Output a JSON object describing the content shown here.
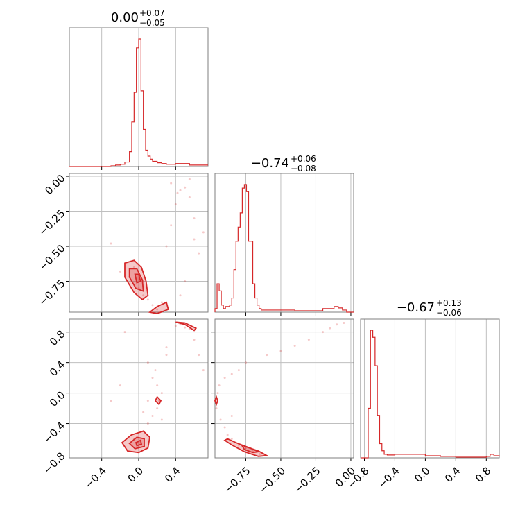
{
  "chart_data": {
    "type": "corner",
    "color": "#d62728",
    "titles": [
      {
        "value": "0.00",
        "plus": "+0.07",
        "minus": "−0.05"
      },
      {
        "value": "−0.74",
        "plus": "+0.06",
        "minus": "−0.08"
      },
      {
        "value": "−0.67",
        "plus": "+0.13",
        "minus": "−0.06"
      }
    ],
    "param_ranges": [
      [
        -0.75,
        0.75
      ],
      [
        -0.97,
        0.02
      ],
      [
        -0.85,
        0.97
      ]
    ],
    "ticks": {
      "p0": [
        {
          "v": -0.4,
          "label": "−0.4"
        },
        {
          "v": 0.0,
          "label": "0.0"
        },
        {
          "v": 0.4,
          "label": "0.4"
        }
      ],
      "p1": [
        {
          "v": -0.75,
          "label": "−0.75"
        },
        {
          "v": -0.5,
          "label": "−0.50"
        },
        {
          "v": -0.25,
          "label": "−0.25"
        },
        {
          "v": 0.0,
          "label": "0.00"
        }
      ],
      "p2": [
        {
          "v": -0.8,
          "label": "−0.8"
        },
        {
          "v": -0.4,
          "label": "−0.4"
        },
        {
          "v": 0.0,
          "label": "0.0"
        },
        {
          "v": 0.4,
          "label": "0.4"
        },
        {
          "v": 0.8,
          "label": "0.8"
        }
      ]
    },
    "hist_p0": {
      "x": [
        -0.75,
        -0.3,
        -0.25,
        -0.2,
        -0.15,
        -0.1,
        -0.075,
        -0.05,
        -0.025,
        0.0,
        0.025,
        0.05,
        0.075,
        0.1,
        0.125,
        0.15,
        0.2,
        0.25,
        0.3,
        0.4,
        0.5,
        0.55,
        0.75
      ],
      "values": [
        0,
        1,
        2,
        3,
        6,
        20,
        60,
        100,
        160,
        172,
        102,
        50,
        22,
        14,
        10,
        7,
        5,
        4,
        3,
        4,
        4,
        2,
        2
      ]
    },
    "hist_p1": {
      "x": [
        -0.97,
        -0.955,
        -0.94,
        -0.925,
        -0.91,
        -0.895,
        -0.88,
        -0.865,
        -0.85,
        -0.835,
        -0.82,
        -0.805,
        -0.79,
        -0.775,
        -0.76,
        -0.745,
        -0.73,
        -0.715,
        -0.7,
        -0.685,
        -0.67,
        -0.655,
        -0.64,
        -0.62,
        -0.5,
        -0.4,
        -0.3,
        -0.2,
        -0.15,
        -0.12,
        -0.09,
        -0.06,
        -0.03,
        0.02
      ],
      "values": [
        5,
        40,
        30,
        10,
        5,
        8,
        8,
        10,
        20,
        60,
        100,
        120,
        140,
        175,
        180,
        170,
        100,
        100,
        40,
        20,
        10,
        5,
        3,
        3,
        3,
        2,
        2,
        5,
        5,
        8,
        6,
        3,
        0,
        0
      ]
    },
    "hist_p2": {
      "x": [
        -0.85,
        -0.8,
        -0.75,
        -0.72,
        -0.69,
        -0.66,
        -0.63,
        -0.6,
        -0.57,
        -0.54,
        -0.5,
        -0.45,
        -0.4,
        -0.3,
        -0.2,
        -0.1,
        0.0,
        0.1,
        0.2,
        0.3,
        0.4,
        0.5,
        0.6,
        0.7,
        0.8,
        0.85,
        0.9,
        0.97
      ],
      "values": [
        0,
        0,
        70,
        180,
        170,
        130,
        60,
        20,
        10,
        5,
        4,
        4,
        5,
        5,
        5,
        5,
        3,
        3,
        2,
        2,
        1,
        1,
        1,
        1,
        2,
        5,
        3,
        2
      ]
    },
    "scatter_p0_p1": {
      "x": [
        -0.05,
        0.0,
        0.05,
        0.0,
        0.05,
        0.1,
        -0.1,
        -0.2,
        0.15,
        0.2,
        0.25,
        0.3,
        0.35,
        0.4,
        0.45,
        0.5,
        0.55,
        0.6,
        0.65,
        0.5,
        0.45,
        0.35,
        0.42,
        0.6,
        0.55,
        0.7,
        -0.3
      ],
      "y": [
        -0.65,
        -0.7,
        -0.75,
        -0.8,
        -0.85,
        -0.88,
        -0.72,
        -0.68,
        -0.92,
        -0.95,
        -0.9,
        -0.5,
        -0.35,
        -0.2,
        -0.1,
        -0.08,
        -0.15,
        -0.3,
        -0.55,
        -0.75,
        -0.85,
        -0.05,
        -0.12,
        -0.45,
        -0.02,
        -0.4,
        -0.48
      ]
    },
    "scatter_p0_p2": {
      "x": [
        0.0,
        -0.05,
        0.05,
        0.1,
        0.15,
        0.2,
        0.22,
        0.25,
        0.2,
        0.18,
        0.15,
        0.1,
        0.3,
        0.4,
        0.45,
        0.5,
        0.55,
        0.6,
        0.65,
        0.7,
        -0.15,
        -0.2,
        0.25,
        0.3,
        0.1,
        -0.3,
        0.05
      ],
      "y": [
        -0.7,
        -0.6,
        -0.5,
        -0.4,
        -0.3,
        -0.2,
        -0.1,
        0.0,
        0.1,
        0.3,
        0.2,
        -0.1,
        0.5,
        0.88,
        0.9,
        0.86,
        0.84,
        0.7,
        0.5,
        0.3,
        0.8,
        0.1,
        -0.35,
        0.6,
        0.4,
        -0.1,
        -0.25
      ]
    },
    "scatter_p1_p2": {
      "x": [
        -0.97,
        -0.96,
        -0.95,
        -0.93,
        -0.9,
        -0.88,
        -0.85,
        -0.8,
        -0.75,
        -0.7,
        -0.65,
        -0.9,
        -0.85,
        -0.8,
        -0.75,
        -0.6,
        -0.5,
        -0.4,
        -0.3,
        -0.2,
        -0.15,
        -0.1,
        -0.05,
        -0.85,
        -0.94
      ],
      "y": [
        -0.1,
        -0.2,
        0.0,
        -0.35,
        -0.45,
        -0.55,
        -0.6,
        -0.68,
        -0.72,
        -0.76,
        -0.8,
        0.2,
        0.25,
        0.3,
        0.4,
        0.5,
        0.55,
        0.62,
        0.7,
        0.8,
        0.85,
        0.9,
        0.92,
        -0.3,
        0.1
      ]
    },
    "contours_p0_p1": [
      [
        [
          -0.15,
          -0.62
        ],
        [
          -0.05,
          -0.6
        ],
        [
          0.03,
          -0.65
        ],
        [
          0.08,
          -0.75
        ],
        [
          0.1,
          -0.85
        ],
        [
          0.04,
          -0.88
        ],
        [
          -0.05,
          -0.83
        ],
        [
          -0.15,
          -0.72
        ]
      ],
      [
        [
          -0.1,
          -0.66
        ],
        [
          -0.02,
          -0.66
        ],
        [
          0.04,
          -0.74
        ],
        [
          0.05,
          -0.82
        ],
        [
          -0.03,
          -0.8
        ],
        [
          -0.1,
          -0.72
        ]
      ],
      [
        [
          -0.04,
          -0.7
        ],
        [
          0.0,
          -0.7
        ],
        [
          0.02,
          -0.75
        ],
        [
          -0.02,
          -0.76
        ]
      ],
      [
        [
          0.12,
          -0.97
        ],
        [
          0.2,
          -0.93
        ],
        [
          0.3,
          -0.9
        ],
        [
          0.32,
          -0.95
        ],
        [
          0.2,
          -0.98
        ]
      ]
    ],
    "contours_p0_p2": [
      [
        [
          -0.18,
          -0.65
        ],
        [
          -0.08,
          -0.55
        ],
        [
          0.05,
          -0.5
        ],
        [
          0.12,
          -0.58
        ],
        [
          0.1,
          -0.72
        ],
        [
          0.0,
          -0.78
        ],
        [
          -0.12,
          -0.76
        ]
      ],
      [
        [
          -0.1,
          -0.66
        ],
        [
          -0.02,
          -0.58
        ],
        [
          0.06,
          -0.6
        ],
        [
          0.06,
          -0.7
        ],
        [
          -0.04,
          -0.73
        ]
      ],
      [
        [
          -0.03,
          -0.65
        ],
        [
          0.02,
          -0.62
        ],
        [
          0.03,
          -0.67
        ],
        [
          -0.02,
          -0.69
        ]
      ],
      [
        [
          0.4,
          0.93
        ],
        [
          0.5,
          0.9
        ],
        [
          0.6,
          0.82
        ],
        [
          0.62,
          0.85
        ],
        [
          0.5,
          0.92
        ]
      ],
      [
        [
          0.2,
          -0.05
        ],
        [
          0.24,
          -0.1
        ],
        [
          0.22,
          -0.15
        ],
        [
          0.18,
          -0.1
        ]
      ]
    ],
    "contours_p1_p2": [
      [
        [
          -0.88,
          -0.6
        ],
        [
          -0.82,
          -0.65
        ],
        [
          -0.74,
          -0.71
        ],
        [
          -0.66,
          -0.76
        ],
        [
          -0.6,
          -0.82
        ],
        [
          -0.66,
          -0.83
        ],
        [
          -0.76,
          -0.77
        ],
        [
          -0.85,
          -0.68
        ],
        [
          -0.9,
          -0.62
        ]
      ],
      [
        [
          -0.78,
          -0.68
        ],
        [
          -0.72,
          -0.72
        ],
        [
          -0.66,
          -0.77
        ],
        [
          -0.7,
          -0.78
        ],
        [
          -0.76,
          -0.74
        ]
      ],
      [
        [
          -0.96,
          -0.05
        ],
        [
          -0.95,
          -0.1
        ],
        [
          -0.96,
          -0.15
        ],
        [
          -0.97,
          -0.1
        ]
      ]
    ]
  }
}
